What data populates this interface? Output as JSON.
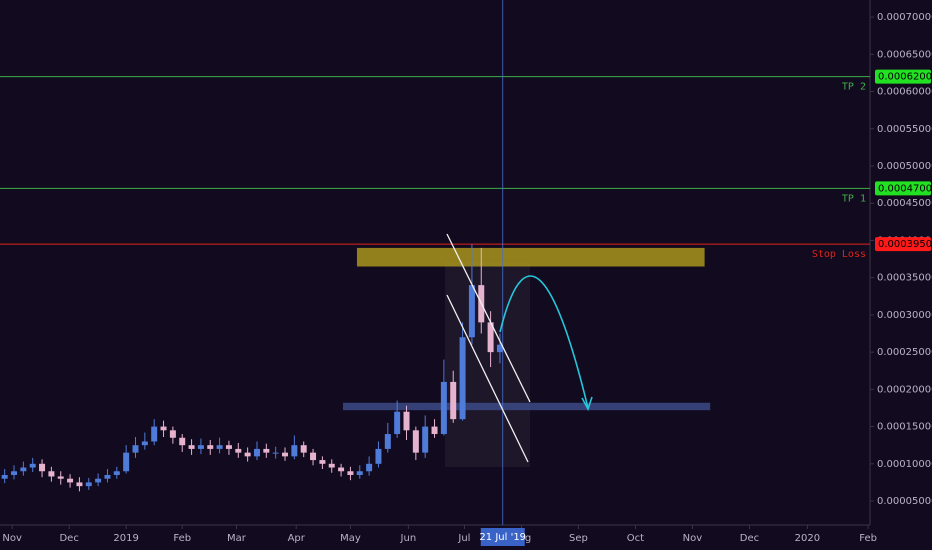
{
  "chart_data": {
    "type": "candlestick",
    "xlim": [
      0,
      93.1
    ],
    "xticks": [
      {
        "value": 1.3,
        "label": "Nov"
      },
      {
        "value": 7.4,
        "label": "Dec"
      },
      {
        "value": 13.5,
        "label": "2019"
      },
      {
        "value": 19.5,
        "label": "Feb"
      },
      {
        "value": 25.3,
        "label": "Mar"
      },
      {
        "value": 31.7,
        "label": "Apr"
      },
      {
        "value": 37.5,
        "label": "May"
      },
      {
        "value": 43.7,
        "label": "Jun"
      },
      {
        "value": 49.7,
        "label": "Jul"
      },
      {
        "value": 55.8,
        "label": "Aug"
      },
      {
        "value": 61.9,
        "label": "Sep"
      },
      {
        "value": 68,
        "label": "Oct"
      },
      {
        "value": 74.1,
        "label": "Nov"
      },
      {
        "value": 80.2,
        "label": "Dec"
      },
      {
        "value": 86.4,
        "label": "2020"
      },
      {
        "value": 92.9,
        "label": "Feb"
      }
    ],
    "ylim": [
      1.78e-05,
      0.000723
    ],
    "yticks": [
      {
        "value": 5e-05,
        "label": "0.00005000"
      },
      {
        "value": 0.0001,
        "label": "0.00010000"
      },
      {
        "value": 0.00015,
        "label": "0.00015000"
      },
      {
        "value": 0.0002,
        "label": "0.00020000"
      },
      {
        "value": 0.00025,
        "label": "0.00025000"
      },
      {
        "value": 0.0003,
        "label": "0.00030000"
      },
      {
        "value": 0.00035,
        "label": "0.00035000"
      },
      {
        "value": 0.0004,
        "label": "0.00040000"
      },
      {
        "value": 0.00045,
        "label": "0.00045000"
      },
      {
        "value": 0.0005,
        "label": "0.00050000"
      },
      {
        "value": 0.00055,
        "label": "0.00055000"
      },
      {
        "value": 0.0006,
        "label": "0.00060000"
      },
      {
        "value": 0.00065,
        "label": "0.00065000"
      },
      {
        "value": 0.0007,
        "label": "0.00070000"
      }
    ],
    "grid": false,
    "up_color": "#4f7bd9",
    "down_color": "#e6b3cf",
    "open": [
      8e-05,
      8.5e-05,
      9e-05,
      9.5e-05,
      0.0001,
      9e-05,
      8.3e-05,
      8e-05,
      7.5e-05,
      7e-05,
      7.5e-05,
      8e-05,
      8.5e-05,
      9e-05,
      0.000115,
      0.000125,
      0.00013,
      0.00015,
      0.000145,
      0.000135,
      0.000125,
      0.00012,
      0.000125,
      0.00012,
      0.000125,
      0.00012,
      0.000115,
      0.00011,
      0.00012,
      0.000115,
      0.000115,
      0.00011,
      0.000125,
      0.000115,
      0.000105,
      0.0001,
      9.5e-05,
      9e-05,
      8.5e-05,
      9e-05,
      0.0001,
      0.00012,
      0.00014,
      0.00017,
      0.000145,
      0.000115,
      0.00015,
      0.00014,
      0.00021,
      0.00016,
      0.00027,
      0.00034,
      0.00029,
      0.00025
    ],
    "high": [
      9.3e-05,
      9.8e-05,
      0.000103,
      0.000108,
      0.000106,
      9.6e-05,
      9e-05,
      8.6e-05,
      8.2e-05,
      8.1e-05,
      8.7e-05,
      9.3e-05,
      9.6e-05,
      0.000125,
      0.000136,
      0.000142,
      0.00016,
      0.000158,
      0.00015,
      0.00014,
      0.000133,
      0.000134,
      0.000132,
      0.000135,
      0.000131,
      0.000128,
      0.000122,
      0.00013,
      0.000127,
      0.000123,
      0.000122,
      0.000138,
      0.00013,
      0.00012,
      0.00011,
      0.000106,
      0.0001,
      9.6e-05,
      9.8e-05,
      0.00011,
      0.00013,
      0.000155,
      0.000185,
      0.000178,
      0.00015,
      0.000165,
      0.00016,
      0.00024,
      0.000225,
      0.00029,
      0.000395,
      0.00039,
      0.000305,
      0.000275
    ],
    "low": [
      7.4e-05,
      7.9e-05,
      8.4e-05,
      8.9e-05,
      8.2e-05,
      7.6e-05,
      7.2e-05,
      6.8e-05,
      6.3e-05,
      6.5e-05,
      7e-05,
      7.5e-05,
      8e-05,
      8.7e-05,
      0.000108,
      0.000119,
      0.000125,
      0.000136,
      0.000127,
      0.000116,
      0.000112,
      0.000113,
      0.000112,
      0.000114,
      0.000112,
      0.000108,
      0.000103,
      0.000105,
      0.000108,
      0.000107,
      0.000104,
      0.000106,
      0.000109,
      9.8e-05,
      9.3e-05,
      8.8e-05,
      8.3e-05,
      7.8e-05,
      8e-05,
      8.4e-05,
      9.5e-05,
      0.000115,
      0.000135,
      0.000132,
      0.000105,
      0.000108,
      0.000135,
      0.000138,
      0.000155,
      0.000158,
      0.00026,
      0.000275,
      0.00023,
      0.000235
    ],
    "close": [
      8.5e-05,
      9e-05,
      9.5e-05,
      0.0001,
      9e-05,
      8.3e-05,
      8e-05,
      7.5e-05,
      7e-05,
      7.5e-05,
      8e-05,
      8.5e-05,
      9e-05,
      0.000115,
      0.000125,
      0.00013,
      0.00015,
      0.000145,
      0.000135,
      0.000125,
      0.00012,
      0.000125,
      0.00012,
      0.000125,
      0.00012,
      0.000115,
      0.00011,
      0.00012,
      0.000115,
      0.000115,
      0.00011,
      0.000125,
      0.000115,
      0.000105,
      0.0001,
      9.5e-05,
      9e-05,
      8.5e-05,
      9e-05,
      0.0001,
      0.00012,
      0.00014,
      0.00017,
      0.000145,
      0.000115,
      0.00015,
      0.00014,
      0.00021,
      0.00016,
      0.00027,
      0.00034,
      0.00029,
      0.00025,
      0.00026
    ],
    "levels": [
      {
        "label": "TP 2",
        "value": 0.00062,
        "value_label": "0.00062000",
        "color": "#3fae49"
      },
      {
        "label": "TP 1",
        "value": 0.00047,
        "value_label": "0.00047000",
        "color": "#3fae49"
      },
      {
        "label": "Stop Loss",
        "value": 0.000395,
        "value_label": "0.00039500",
        "color": "#e0241b"
      }
    ],
    "zones": [
      {
        "from": 38.2,
        "to": 75.4,
        "low": 0.000365,
        "high": 0.00039,
        "color": "#a8951c"
      },
      {
        "from": 36.7,
        "to": 76,
        "low": 0.000172,
        "high": 0.000182,
        "color": "#3b4a86"
      }
    ],
    "crosshair": {
      "x": 53.8,
      "label": "21 Jul '19"
    }
  }
}
